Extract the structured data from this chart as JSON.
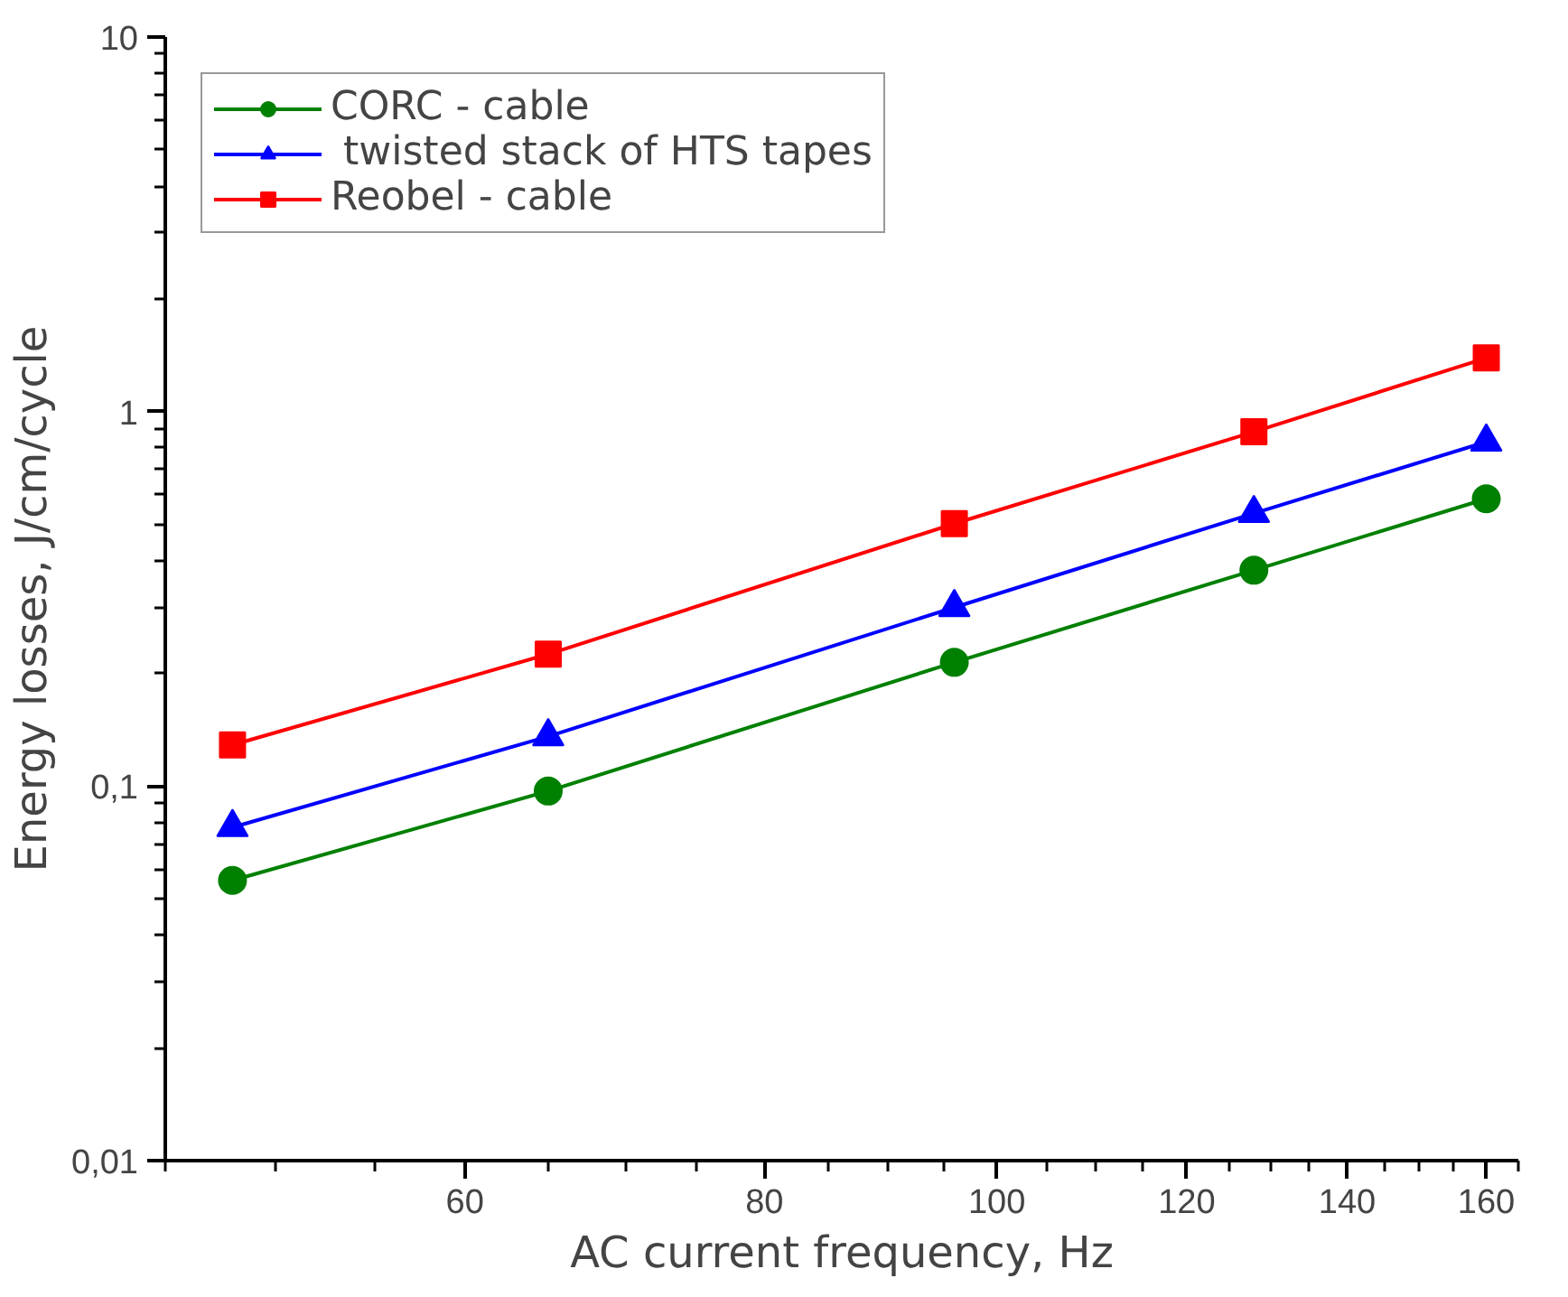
{
  "chart_data": {
    "type": "line",
    "xlabel": "AC current frequency, Hz",
    "ylabel": "Energy losses, J/cm/cycle",
    "x": [
      48,
      65,
      96,
      128,
      160
    ],
    "log": "xy",
    "xlim": [
      45,
      165
    ],
    "xticks": [
      60,
      80,
      100,
      120,
      140,
      160
    ],
    "ylim": [
      0.01,
      10
    ],
    "yticks": [
      {
        "value": 0.01,
        "label": "0,01"
      },
      {
        "value": 0.1,
        "label": "0,1"
      },
      1,
      10
    ],
    "grid": false,
    "legend": "top left",
    "line_style": "solid",
    "series": [
      {
        "name": "CORC - cable",
        "color": "#008000",
        "marker": "circle",
        "values": [
          0.056,
          0.097,
          0.214,
          0.377,
          0.585
        ]
      },
      {
        "name": " twisted stack of HTS tapes",
        "color": "#0000ff",
        "marker": "triangle",
        "values": [
          0.0776,
          0.1357,
          0.3,
          0.535,
          0.83
        ]
      },
      {
        "name": "Reobel - cable",
        "color": "#ff0000",
        "marker": "square",
        "values": [
          0.1288,
          0.225,
          0.502,
          0.883,
          1.39
        ]
      }
    ]
  }
}
